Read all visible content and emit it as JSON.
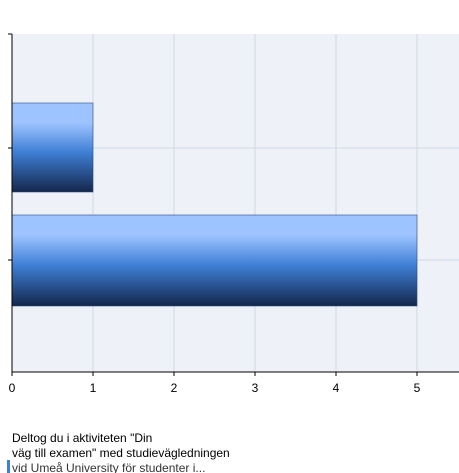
{
  "chart_data": {
    "type": "bar",
    "orientation": "horizontal",
    "categories": [
      "",
      ""
    ],
    "values": [
      1,
      5
    ],
    "xlim": [
      0,
      5.5
    ],
    "xticks": [
      "0",
      "1",
      "2",
      "3",
      "4",
      "5"
    ],
    "grid": true,
    "title": "",
    "xlabel": "",
    "ylabel": ""
  },
  "caption": {
    "line1": "Deltog du i aktiviteten \"Din",
    "line2": "väg till examen\" med studievägledningen",
    "line3": "vid Umeå University för studenter i..."
  },
  "colors": {
    "plot_background": "#eef2f8",
    "grid": "#cfd8e6",
    "axis": "#000000",
    "bar_light": "#9ec4ff",
    "bar_mid": "#3f7fd6",
    "bar_dark": "#14274c"
  }
}
